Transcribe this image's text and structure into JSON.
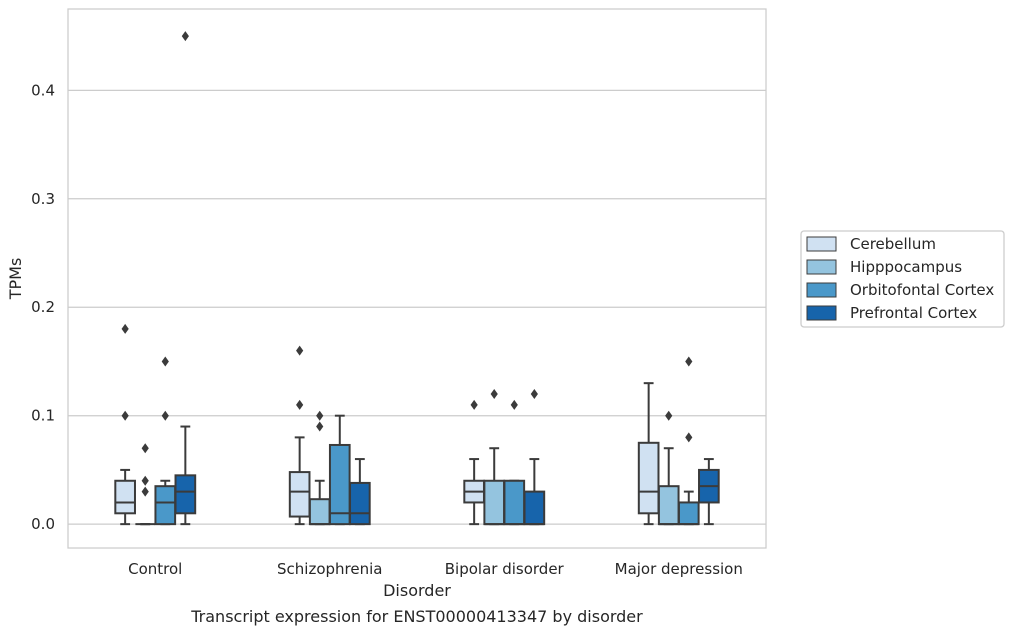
{
  "chart_data": {
    "type": "box",
    "title": "Transcript expression for ENST00000413347 by disorder",
    "xlabel": "Disorder",
    "ylabel": "TPMs",
    "ylim": [
      -0.022,
      0.475
    ],
    "yticks": [
      0.0,
      0.1,
      0.2,
      0.3,
      0.4
    ],
    "ytick_labels": [
      "0.0",
      "0.1",
      "0.2",
      "0.3",
      "0.4"
    ],
    "grid": "horizontal",
    "legend_placement": "right",
    "categories": [
      "Control",
      "Schizophrenia",
      "Bipolar disorder",
      "Major depression"
    ],
    "series": [
      {
        "name": "Cerebellum",
        "color": "#d0e1f2",
        "boxes": [
          {
            "whislo": 0.0,
            "q1": 0.01,
            "med": 0.02,
            "q3": 0.04,
            "whishi": 0.05,
            "fliers": [
              0.1,
              0.18
            ]
          },
          {
            "whislo": 0.0,
            "q1": 0.007,
            "med": 0.03,
            "q3": 0.048,
            "whishi": 0.08,
            "fliers": [
              0.11,
              0.16
            ]
          },
          {
            "whislo": 0.0,
            "q1": 0.02,
            "med": 0.03,
            "q3": 0.04,
            "whishi": 0.06,
            "fliers": [
              0.11
            ]
          },
          {
            "whislo": 0.0,
            "q1": 0.01,
            "med": 0.03,
            "q3": 0.075,
            "whishi": 0.13,
            "fliers": []
          }
        ]
      },
      {
        "name": "Hipppocampus",
        "color": "#94c4df",
        "boxes": [
          {
            "whislo": 0.0,
            "q1": 0.0,
            "med": 0.0,
            "q3": 0.0,
            "whishi": 0.0,
            "fliers": [
              0.03,
              0.04,
              0.07
            ]
          },
          {
            "whislo": 0.0,
            "q1": 0.0,
            "med": 0.0,
            "q3": 0.023,
            "whishi": 0.04,
            "fliers": [
              0.09,
              0.1
            ]
          },
          {
            "whislo": 0.0,
            "q1": 0.0,
            "med": 0.0,
            "q3": 0.04,
            "whishi": 0.07,
            "fliers": [
              0.12
            ]
          },
          {
            "whislo": 0.0,
            "q1": 0.0,
            "med": 0.0,
            "q3": 0.035,
            "whishi": 0.07,
            "fliers": [
              0.1
            ]
          }
        ]
      },
      {
        "name": "Orbitofontal Cortex",
        "color": "#4a98c9",
        "boxes": [
          {
            "whislo": 0.0,
            "q1": 0.0,
            "med": 0.02,
            "q3": 0.035,
            "whishi": 0.04,
            "fliers": [
              0.1,
              0.15
            ]
          },
          {
            "whislo": 0.0,
            "q1": 0.0,
            "med": 0.01,
            "q3": 0.073,
            "whishi": 0.1,
            "fliers": []
          },
          {
            "whislo": 0.0,
            "q1": 0.0,
            "med": 0.0,
            "q3": 0.04,
            "whishi": 0.04,
            "fliers": [
              0.11
            ]
          },
          {
            "whislo": 0.0,
            "q1": 0.0,
            "med": 0.0,
            "q3": 0.02,
            "whishi": 0.03,
            "fliers": [
              0.08,
              0.15
            ]
          }
        ]
      },
      {
        "name": "Prefrontal Cortex",
        "color": "#1764ab",
        "boxes": [
          {
            "whislo": 0.0,
            "q1": 0.01,
            "med": 0.03,
            "q3": 0.045,
            "whishi": 0.09,
            "fliers": [
              0.45
            ]
          },
          {
            "whislo": 0.0,
            "q1": 0.0,
            "med": 0.01,
            "q3": 0.038,
            "whishi": 0.06,
            "fliers": []
          },
          {
            "whislo": 0.0,
            "q1": 0.0,
            "med": 0.0,
            "q3": 0.03,
            "whishi": 0.06,
            "fliers": [
              0.12
            ]
          },
          {
            "whislo": 0.0,
            "q1": 0.02,
            "med": 0.035,
            "q3": 0.05,
            "whishi": 0.06,
            "fliers": []
          }
        ]
      }
    ]
  }
}
